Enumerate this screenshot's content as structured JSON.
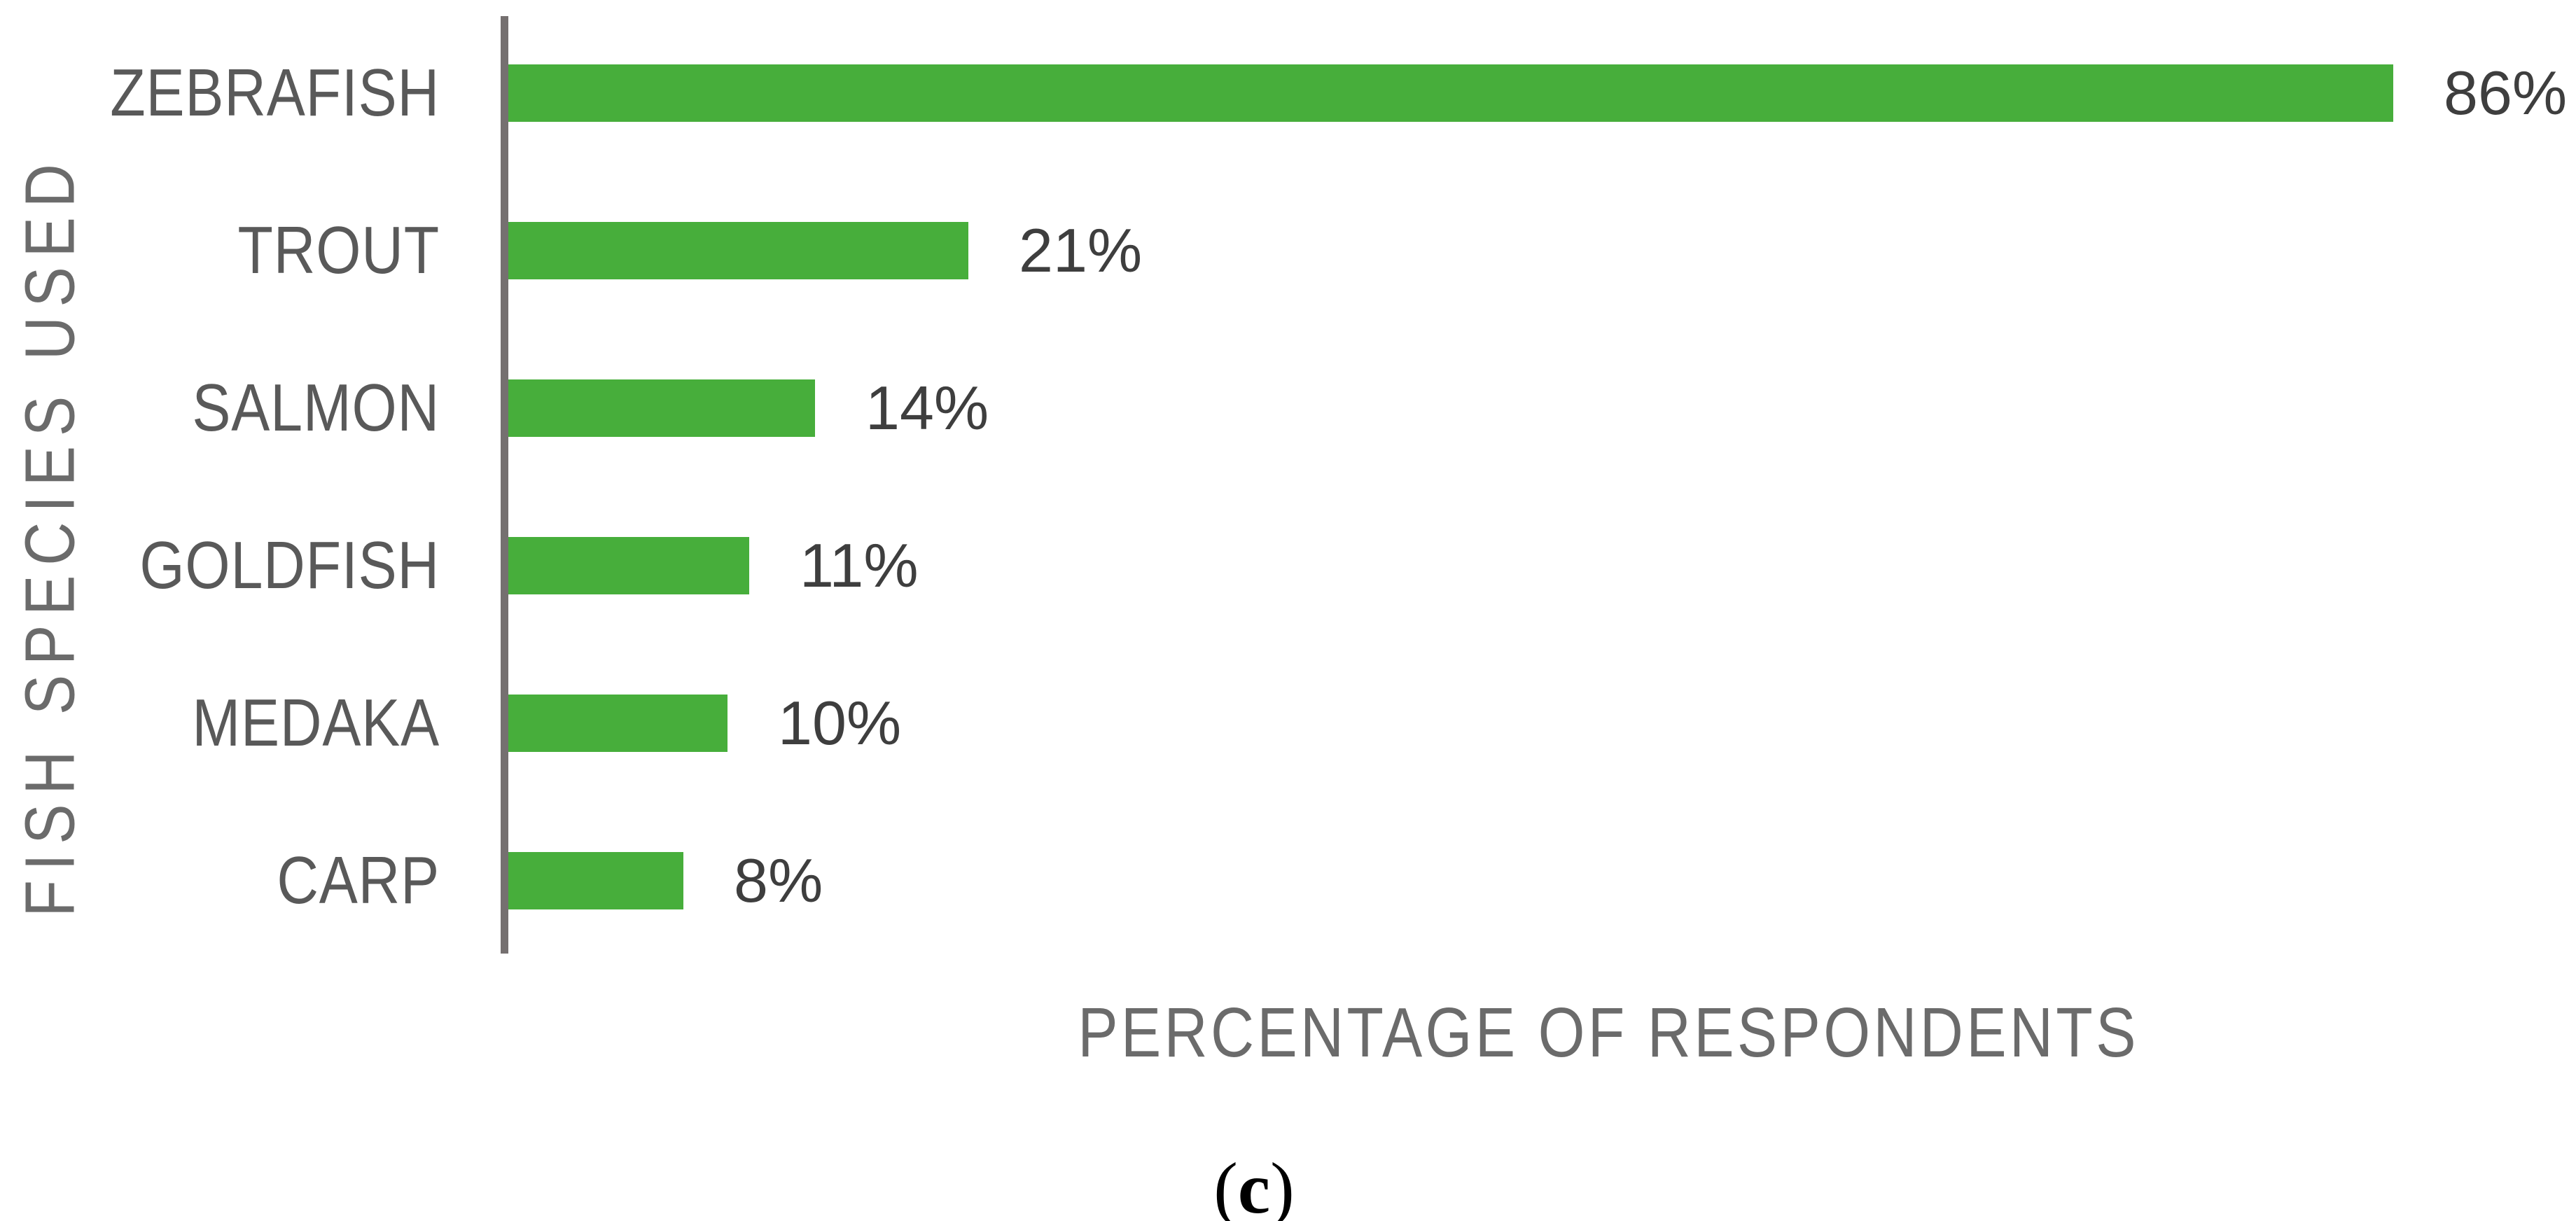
{
  "figure": {
    "caption": {
      "open": "(",
      "letter": "c",
      "close": ")"
    }
  },
  "chart_data": {
    "type": "bar",
    "orientation": "horizontal",
    "title": "",
    "categories": [
      "ZEBRAFISH",
      "TROUT",
      "SALMON",
      "GOLDFISH",
      "MEDAKA",
      "CARP"
    ],
    "values": [
      86,
      21,
      14,
      11,
      10,
      8
    ],
    "value_labels": [
      "86%",
      "21%",
      "14%",
      "11%",
      "10%",
      "8%"
    ],
    "xlabel": "PERCENTAGE OF RESPONDENTS",
    "ylabel": "FISH SPECIES USED",
    "xlim": [
      0,
      100
    ],
    "grid": false,
    "legend": null,
    "colors": {
      "bar": "#47AE3B",
      "axis_line": "#757070",
      "category_label": "#595959",
      "value_label": "#3E3E3E",
      "axis_title": "#6B6B6B",
      "background": "#FFFFFF"
    }
  }
}
